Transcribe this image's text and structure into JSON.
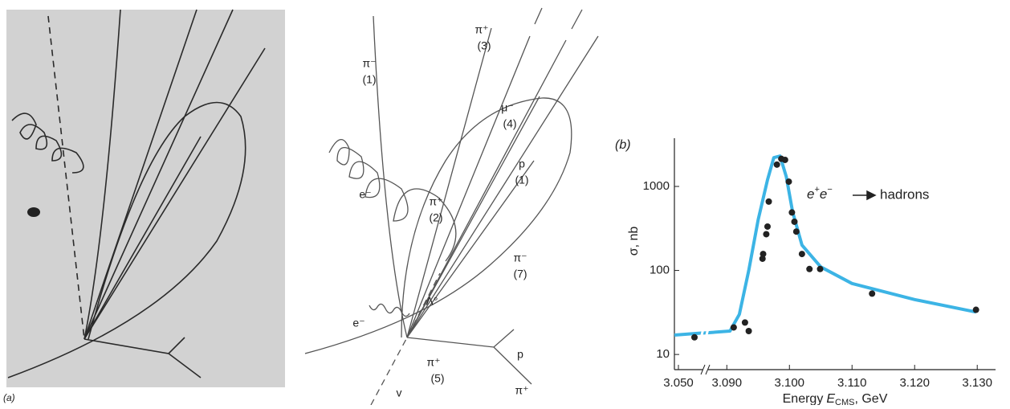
{
  "photo": {
    "panel_label": "(a)"
  },
  "diagram": {
    "labels": [
      "π⁻",
      "(1)",
      "π⁺",
      "(3)",
      "μ⁻",
      "(4)",
      "p",
      "(1)",
      "e⁻",
      "π⁺",
      "(2)",
      "π⁻",
      "(7)",
      "e⁻",
      "Λ°",
      "π⁺",
      "(5)",
      "p",
      "π⁺",
      "v"
    ]
  },
  "chart_data": {
    "type": "scatter",
    "panel_label": "(b)",
    "ylabel": "σ, nb",
    "xlabel": {
      "text": "Energy",
      "symbol": "E",
      "subscript": "CMS",
      "unit": ", GeV"
    },
    "annotation": {
      "particle1": "e",
      "charge1": "+",
      "particle2": "e",
      "charge2": "−",
      "products": "hadrons"
    },
    "log_scale": true,
    "xlim": [
      3.049,
      3.131
    ],
    "x_break": [
      3.056,
      3.0865
    ],
    "ylim": [
      6.6,
      3750
    ],
    "xticks": [
      {
        "value": 3.05,
        "label": "3.050"
      },
      {
        "value": 3.09,
        "label": "3.090"
      },
      {
        "value": 3.1,
        "label": "3.100"
      },
      {
        "value": 3.11,
        "label": "3.110"
      },
      {
        "value": 3.12,
        "label": "3.120"
      },
      {
        "value": 3.13,
        "label": "3.130"
      }
    ],
    "yticks": [
      10,
      100,
      1000
    ],
    "series": [
      {
        "color": "#222222",
        "x": [
          3.054,
          3.0911,
          3.0929,
          3.0935,
          3.0957,
          3.0958,
          3.0963,
          3.0965,
          3.0967,
          3.098,
          3.0987,
          3.0993,
          3.0999,
          3.1004,
          3.1008,
          3.1011,
          3.102,
          3.1032,
          3.1049,
          3.1132,
          3.1298
        ],
        "values": [
          16,
          21,
          24,
          19,
          138,
          157,
          270,
          333,
          660,
          1820,
          2130,
          2070,
          1140,
          490,
          380,
          290,
          157,
          104,
          104,
          53,
          34
        ]
      }
    ],
    "fit": {
      "color": "#3cb4e5",
      "x": [
        3.049,
        3.056,
        3.0865,
        3.0905,
        3.092,
        3.0935,
        3.095,
        3.0965,
        3.0975,
        3.0985,
        3.0995,
        3.1005,
        3.102,
        3.105,
        3.11,
        3.12,
        3.1298
      ],
      "values": [
        17,
        18,
        18,
        19,
        30,
        100,
        400,
        1200,
        2200,
        2300,
        1300,
        500,
        200,
        110,
        70,
        45,
        32
      ]
    }
  }
}
